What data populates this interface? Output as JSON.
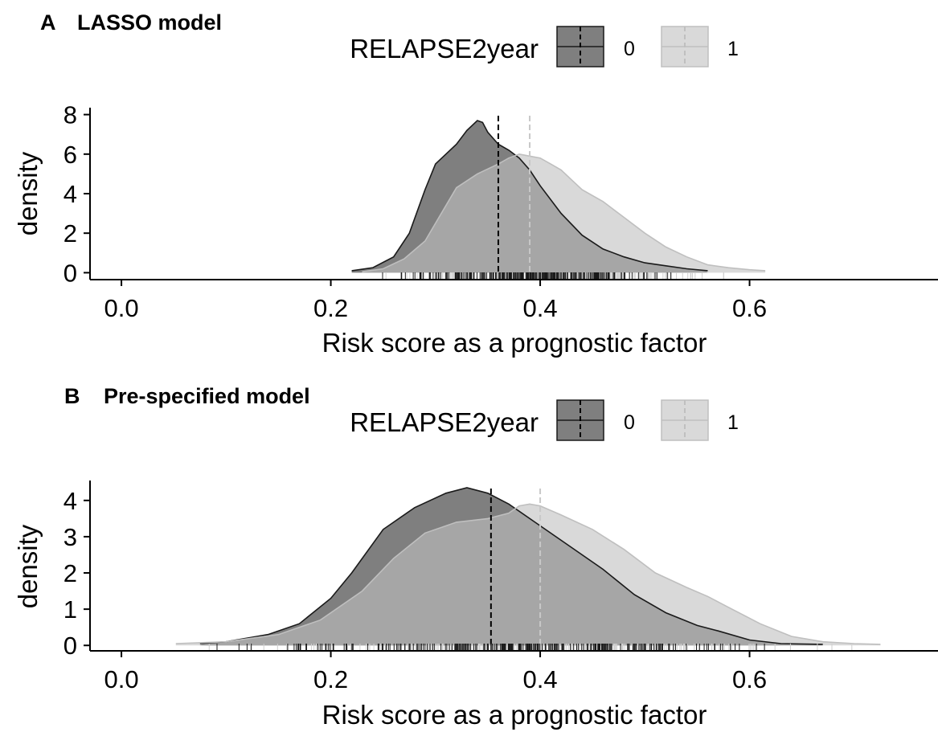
{
  "colors": {
    "group0_fill": "#7f7f7f",
    "group1_fill": "#d9d9d9",
    "group1_overlap_fill": "#a6a6a6",
    "group0_line": "#1a1a1a",
    "group1_line": "#bfbfbf",
    "axis": "#000000"
  },
  "chart_data": [
    {
      "panel_tag": "A",
      "title": "LASSO model",
      "type": "area",
      "legend": {
        "title": "RELAPSE2year",
        "entries": [
          "0",
          "1"
        ],
        "placement": "top-center"
      },
      "xlabel": "Risk score as a prognostic factor",
      "ylabel": "density",
      "xlim": [
        -0.03,
        0.78
      ],
      "ylim": [
        -0.35,
        8.35
      ],
      "xticks": [
        "0.0",
        "0.2",
        "0.4",
        "0.6"
      ],
      "xtick_values": [
        0.0,
        0.2,
        0.4,
        0.6
      ],
      "yticks": [
        "0",
        "2",
        "4",
        "6",
        "8"
      ],
      "ytick_values": [
        0,
        2,
        4,
        6,
        8
      ],
      "series": [
        {
          "name": "0",
          "x": [
            0.22,
            0.24,
            0.26,
            0.275,
            0.29,
            0.3,
            0.31,
            0.32,
            0.33,
            0.34,
            0.345,
            0.35,
            0.36,
            0.37,
            0.38,
            0.39,
            0.4,
            0.42,
            0.44,
            0.46,
            0.48,
            0.5,
            0.52,
            0.54,
            0.56
          ],
          "y": [
            0.1,
            0.25,
            0.8,
            2.0,
            4.2,
            5.5,
            6.0,
            6.5,
            7.2,
            7.7,
            7.6,
            7.1,
            6.5,
            6.2,
            5.8,
            5.2,
            4.4,
            3.0,
            1.9,
            1.2,
            0.8,
            0.5,
            0.35,
            0.2,
            0.1
          ],
          "mean": 0.36
        },
        {
          "name": "1",
          "x": [
            0.23,
            0.25,
            0.27,
            0.29,
            0.3,
            0.31,
            0.32,
            0.34,
            0.36,
            0.37,
            0.38,
            0.39,
            0.4,
            0.41,
            0.42,
            0.43,
            0.44,
            0.46,
            0.48,
            0.5,
            0.52,
            0.54,
            0.56,
            0.58,
            0.6,
            0.615
          ],
          "y": [
            0.05,
            0.2,
            0.7,
            1.6,
            2.5,
            3.4,
            4.3,
            5.0,
            5.5,
            5.8,
            6.0,
            5.9,
            5.8,
            5.5,
            5.2,
            4.7,
            4.2,
            3.6,
            2.8,
            2.0,
            1.3,
            0.8,
            0.4,
            0.25,
            0.15,
            0.1
          ],
          "mean": 0.39
        }
      ]
    },
    {
      "panel_tag": "B",
      "title": "Pre-specified model",
      "type": "area",
      "legend": {
        "title": "RELAPSE2year",
        "entries": [
          "0",
          "1"
        ],
        "placement": "top-center"
      },
      "xlabel": "Risk score as a prognostic factor",
      "ylabel": "density",
      "xlim": [
        -0.03,
        0.78
      ],
      "ylim": [
        -0.15,
        4.55
      ],
      "xticks": [
        "0.0",
        "0.2",
        "0.4",
        "0.6"
      ],
      "xtick_values": [
        0.0,
        0.2,
        0.4,
        0.6
      ],
      "yticks": [
        "0",
        "1",
        "2",
        "3",
        "4"
      ],
      "ytick_values": [
        0,
        1,
        2,
        3,
        4
      ],
      "series": [
        {
          "name": "0",
          "x": [
            0.075,
            0.1,
            0.14,
            0.17,
            0.2,
            0.22,
            0.25,
            0.28,
            0.31,
            0.33,
            0.35,
            0.37,
            0.4,
            0.43,
            0.46,
            0.49,
            0.52,
            0.55,
            0.57,
            0.6,
            0.63,
            0.67
          ],
          "y": [
            0.05,
            0.1,
            0.3,
            0.6,
            1.3,
            2.0,
            3.2,
            3.8,
            4.2,
            4.35,
            4.2,
            3.9,
            3.3,
            2.7,
            2.1,
            1.4,
            0.9,
            0.55,
            0.4,
            0.15,
            0.05,
            0.03
          ],
          "mean": 0.353
        },
        {
          "name": "1",
          "x": [
            0.052,
            0.1,
            0.15,
            0.19,
            0.23,
            0.26,
            0.29,
            0.32,
            0.35,
            0.37,
            0.38,
            0.39,
            0.4,
            0.42,
            0.45,
            0.48,
            0.51,
            0.54,
            0.56,
            0.58,
            0.61,
            0.64,
            0.67,
            0.7,
            0.725
          ],
          "y": [
            0.05,
            0.1,
            0.3,
            0.7,
            1.5,
            2.4,
            3.1,
            3.4,
            3.5,
            3.65,
            3.85,
            3.9,
            3.85,
            3.6,
            3.2,
            2.65,
            2.0,
            1.6,
            1.35,
            1.05,
            0.6,
            0.25,
            0.1,
            0.05,
            0.03
          ],
          "mean": 0.4
        }
      ]
    }
  ]
}
